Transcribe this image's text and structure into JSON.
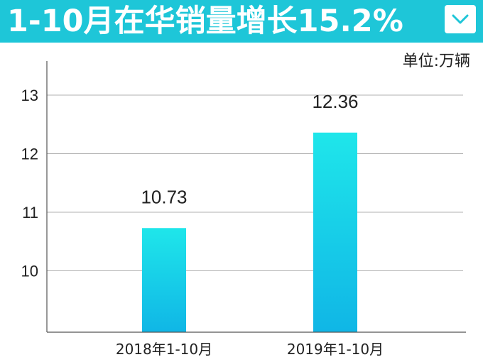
{
  "header": {
    "title": "1-10月在华销量增长15.2%",
    "dropdown_icon": "chevron-down-icon"
  },
  "unit_label": "单位:万辆",
  "colors": {
    "title_bg": "#1ec6d8",
    "bar_top": "#1fe6ea",
    "bar_bottom": "#10b6e6",
    "grid": "#b0b0b0",
    "axis": "#555555"
  },
  "chart_data": {
    "type": "bar",
    "title": "1-10月在华销量增长15.2%",
    "unit": "单位:万辆",
    "categories": [
      "2018年1-10月",
      "2019年1-10月"
    ],
    "values": [
      10.73,
      12.36
    ],
    "data_labels": [
      "10.73",
      "12.36"
    ],
    "yticks": [
      "10",
      "11",
      "12",
      "13"
    ],
    "ylim": [
      9,
      13.5
    ],
    "grid": true,
    "legend": "none"
  }
}
